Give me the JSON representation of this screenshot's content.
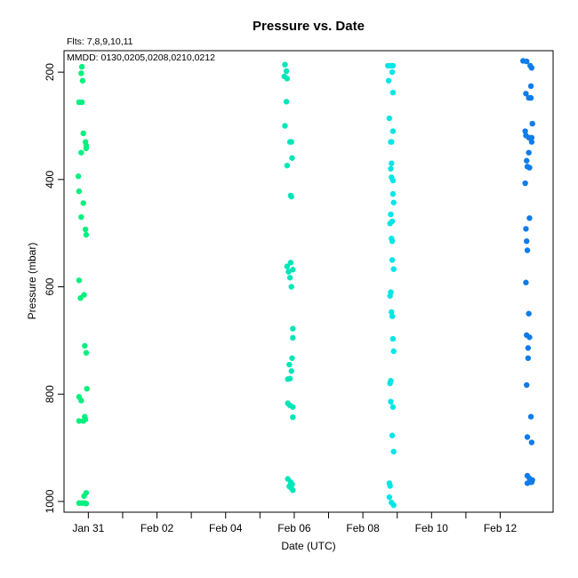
{
  "chart_data": {
    "type": "scatter",
    "title": "Pressure  vs. Date",
    "annotations": [
      "Flts: 7,8,9,10,11",
      "MMDD: 0130,0205,0208,0210,0212"
    ],
    "xlabel": "Date (UTC)",
    "ylabel": "Pressure (mbar)",
    "x_axis_type": "date",
    "xlim": [
      "2019-01-30T07:00",
      "2019-02-13T13:00"
    ],
    "ylim": [
      1020,
      160
    ],
    "y_reversed": true,
    "x_ticks": [
      {
        "date": "2019-01-31",
        "label": "Jan 31"
      },
      {
        "date": "2019-02-02",
        "label": "Feb 02"
      },
      {
        "date": "2019-02-04",
        "label": "Feb 04"
      },
      {
        "date": "2019-02-06",
        "label": "Feb 06"
      },
      {
        "date": "2019-02-08",
        "label": "Feb 08"
      },
      {
        "date": "2019-02-10",
        "label": "Feb 10"
      },
      {
        "date": "2019-02-12",
        "label": "Feb 12"
      }
    ],
    "y_ticks": [
      200,
      400,
      600,
      800,
      1000
    ],
    "grid": false,
    "legend": "none",
    "series": [
      {
        "color": "#00f07e",
        "points": [
          [
            "2019-01-30T17:00",
            178
          ],
          [
            "2019-01-30T19:30",
            190
          ],
          [
            "2019-01-30T19:00",
            202
          ],
          [
            "2019-01-30T20:00",
            216
          ],
          [
            "2019-01-30T17:30",
            256
          ],
          [
            "2019-01-30T19:30",
            256
          ],
          [
            "2019-01-30T20:30",
            314
          ],
          [
            "2019-01-30T22:00",
            330
          ],
          [
            "2019-01-30T22:30",
            337
          ],
          [
            "2019-01-30T22:30",
            342
          ],
          [
            "2019-01-30T19:00",
            350
          ],
          [
            "2019-01-30T17:00",
            394
          ],
          [
            "2019-01-30T17:30",
            422
          ],
          [
            "2019-01-30T20:30",
            444
          ],
          [
            "2019-01-30T19:00",
            470
          ],
          [
            "2019-01-30T22:00",
            493
          ],
          [
            "2019-01-30T22:30",
            503
          ],
          [
            "2019-01-30T17:30",
            588
          ],
          [
            "2019-01-30T21:00",
            615
          ],
          [
            "2019-01-30T18:30",
            621
          ],
          [
            "2019-01-30T21:30",
            710
          ],
          [
            "2019-01-30T22:30",
            723
          ],
          [
            "2019-01-30T23:00",
            790
          ],
          [
            "2019-01-30T17:30",
            805
          ],
          [
            "2019-01-30T19:00",
            812
          ],
          [
            "2019-01-30T21:30",
            842
          ],
          [
            "2019-01-30T17:30",
            850
          ],
          [
            "2019-01-30T20:30",
            850
          ],
          [
            "2019-01-30T22:00",
            847
          ],
          [
            "2019-01-30T22:30",
            984
          ],
          [
            "2019-01-30T21:00",
            990
          ],
          [
            "2019-01-30T17:30",
            1003
          ],
          [
            "2019-01-30T19:30",
            1003
          ],
          [
            "2019-01-30T21:30",
            1003
          ],
          [
            "2019-01-30T22:30",
            1004
          ]
        ]
      },
      {
        "color": "#00e6b8",
        "points": [
          [
            "2019-02-05T17:30",
            186
          ],
          [
            "2019-02-05T18:30",
            198
          ],
          [
            "2019-02-05T17:00",
            208
          ],
          [
            "2019-02-05T19:00",
            212
          ],
          [
            "2019-02-05T18:30",
            255
          ],
          [
            "2019-02-05T17:30",
            300
          ],
          [
            "2019-02-05T21:00",
            330
          ],
          [
            "2019-02-05T22:00",
            330
          ],
          [
            "2019-02-05T22:30",
            360
          ],
          [
            "2019-02-05T19:00",
            374
          ],
          [
            "2019-02-05T21:30",
            430
          ],
          [
            "2019-02-05T22:00",
            432
          ],
          [
            "2019-02-05T21:30",
            555
          ],
          [
            "2019-02-05T19:00",
            562
          ],
          [
            "2019-02-05T20:00",
            572
          ],
          [
            "2019-02-05T23:00",
            568
          ],
          [
            "2019-02-05T21:00",
            583
          ],
          [
            "2019-02-05T22:00",
            600
          ],
          [
            "2019-02-05T23:00",
            678
          ],
          [
            "2019-02-05T23:00",
            695
          ],
          [
            "2019-02-05T22:30",
            733
          ],
          [
            "2019-02-05T20:30",
            745
          ],
          [
            "2019-02-05T22:00",
            757
          ],
          [
            "2019-02-05T19:30",
            772
          ],
          [
            "2019-02-05T21:00",
            771
          ],
          [
            "2019-02-05T19:30",
            817
          ],
          [
            "2019-02-05T21:00",
            821
          ],
          [
            "2019-02-05T23:00",
            824
          ],
          [
            "2019-02-05T23:00",
            843
          ],
          [
            "2019-02-05T19:30",
            958
          ],
          [
            "2019-02-05T21:30",
            964
          ],
          [
            "2019-02-05T22:30",
            968
          ],
          [
            "2019-02-05T20:30",
            972
          ],
          [
            "2019-02-05T23:00",
            979
          ],
          [
            "2019-02-05T22:00",
            975
          ]
        ]
      },
      {
        "color": "#00e6e6",
        "points": [
          [
            "2019-02-08T17:30",
            188
          ],
          [
            "2019-02-08T19:30",
            188
          ],
          [
            "2019-02-08T21:00",
            188
          ],
          [
            "2019-02-08T20:30",
            200
          ],
          [
            "2019-02-08T18:00",
            216
          ],
          [
            "2019-02-08T21:00",
            238
          ],
          [
            "2019-02-08T18:30",
            286
          ],
          [
            "2019-02-08T21:00",
            310
          ],
          [
            "2019-02-08T19:30",
            330
          ],
          [
            "2019-02-08T20:00",
            330
          ],
          [
            "2019-02-08T20:00",
            370
          ],
          [
            "2019-02-08T19:30",
            380
          ],
          [
            "2019-02-08T20:00",
            396
          ],
          [
            "2019-02-08T21:00",
            402
          ],
          [
            "2019-02-08T21:00",
            427
          ],
          [
            "2019-02-08T21:30",
            443
          ],
          [
            "2019-02-08T19:30",
            465
          ],
          [
            "2019-02-08T19:00",
            482
          ],
          [
            "2019-02-08T20:30",
            478
          ],
          [
            "2019-02-08T20:00",
            510
          ],
          [
            "2019-02-08T20:30",
            515
          ],
          [
            "2019-02-08T20:30",
            550
          ],
          [
            "2019-02-08T21:30",
            567
          ],
          [
            "2019-02-08T19:30",
            610
          ],
          [
            "2019-02-08T19:00",
            617
          ],
          [
            "2019-02-08T20:00",
            647
          ],
          [
            "2019-02-08T20:30",
            655
          ],
          [
            "2019-02-08T21:00",
            697
          ],
          [
            "2019-02-08T21:30",
            720
          ],
          [
            "2019-02-08T19:30",
            775
          ],
          [
            "2019-02-08T19:00",
            780
          ],
          [
            "2019-02-08T19:30",
            814
          ],
          [
            "2019-02-08T21:00",
            824
          ],
          [
            "2019-02-08T20:30",
            877
          ],
          [
            "2019-02-08T21:30",
            907
          ],
          [
            "2019-02-08T18:30",
            966
          ],
          [
            "2019-02-08T19:00",
            971
          ],
          [
            "2019-02-08T18:30",
            992
          ],
          [
            "2019-02-08T20:00",
            1002
          ],
          [
            "2019-02-08T21:30",
            1007
          ]
        ]
      },
      {
        "color": "#0f7ce8",
        "points": [
          [
            "2019-02-12T16:00",
            179
          ],
          [
            "2019-02-12T18:30",
            180
          ],
          [
            "2019-02-12T21:00",
            188
          ],
          [
            "2019-02-12T22:00",
            192
          ],
          [
            "2019-02-12T21:30",
            226
          ],
          [
            "2019-02-12T18:00",
            240
          ],
          [
            "2019-02-12T20:00",
            248
          ],
          [
            "2019-02-12T21:30",
            248
          ],
          [
            "2019-02-12T22:30",
            296
          ],
          [
            "2019-02-12T17:30",
            310
          ],
          [
            "2019-02-12T18:00",
            318
          ],
          [
            "2019-02-12T20:00",
            322
          ],
          [
            "2019-02-12T22:00",
            322
          ],
          [
            "2019-02-12T22:00",
            330
          ],
          [
            "2019-02-12T20:00",
            350
          ],
          [
            "2019-02-12T18:30",
            365
          ],
          [
            "2019-02-12T19:00",
            376
          ],
          [
            "2019-02-12T20:30",
            378
          ],
          [
            "2019-02-12T17:30",
            407
          ],
          [
            "2019-02-12T20:30",
            472
          ],
          [
            "2019-02-12T18:00",
            492
          ],
          [
            "2019-02-12T18:30",
            515
          ],
          [
            "2019-02-12T19:00",
            532
          ],
          [
            "2019-02-12T18:00",
            592
          ],
          [
            "2019-02-12T20:00",
            650
          ],
          [
            "2019-02-12T18:30",
            690
          ],
          [
            "2019-02-12T20:30",
            694
          ],
          [
            "2019-02-12T19:30",
            714
          ],
          [
            "2019-02-12T19:30",
            733
          ],
          [
            "2019-02-12T18:30",
            783
          ],
          [
            "2019-02-12T21:30",
            842
          ],
          [
            "2019-02-12T19:00",
            880
          ],
          [
            "2019-02-12T22:00",
            890
          ],
          [
            "2019-02-12T19:00",
            952
          ],
          [
            "2019-02-12T20:30",
            957
          ],
          [
            "2019-02-12T22:30",
            960
          ],
          [
            "2019-02-12T21:00",
            964
          ],
          [
            "2019-02-12T19:00",
            966
          ],
          [
            "2019-02-12T22:00",
            964
          ]
        ]
      }
    ]
  }
}
